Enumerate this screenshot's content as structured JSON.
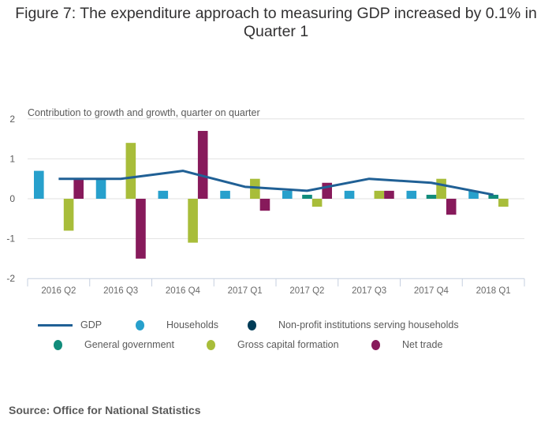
{
  "chart_data": {
    "type": "bar",
    "title": "Figure 7: The expenditure approach to measuring GDP increased by 0.1% in Quarter 1",
    "subtitle": "Contribution to growth and growth, quarter on quarter",
    "xlabel": "",
    "ylabel": "",
    "ylim": [
      -2,
      2
    ],
    "yticks": [
      2,
      1,
      0,
      -1,
      -2
    ],
    "grid": true,
    "legend_position": "bottom",
    "categories": [
      "2016 Q2",
      "2016 Q3",
      "2016 Q4",
      "2017 Q1",
      "2017 Q2",
      "2017 Q3",
      "2017 Q4",
      "2018 Q1"
    ],
    "series": [
      {
        "name": "GDP",
        "type": "line",
        "color": "#206095",
        "values": [
          0.5,
          0.5,
          0.7,
          0.3,
          0.2,
          0.5,
          0.4,
          0.1
        ]
      },
      {
        "name": "Households",
        "type": "bar",
        "color": "#27a0cc",
        "values": [
          0.7,
          0.5,
          0.2,
          0.2,
          0.2,
          0.2,
          0.2,
          0.2
        ]
      },
      {
        "name": "Non-profit institutions serving households",
        "type": "bar",
        "color": "#003c57",
        "values": [
          0,
          0,
          0,
          0,
          0,
          0,
          0,
          0
        ]
      },
      {
        "name": "General government",
        "type": "bar",
        "color": "#118c7b",
        "values": [
          0,
          0,
          0,
          0,
          0.1,
          0,
          0.1,
          0.1
        ]
      },
      {
        "name": "Gross capital formation",
        "type": "bar",
        "color": "#a8bd3a",
        "values": [
          -0.8,
          1.4,
          -1.1,
          0.5,
          -0.2,
          0.2,
          0.5,
          -0.2
        ]
      },
      {
        "name": "Net trade",
        "type": "bar",
        "color": "#871a5b",
        "values": [
          0.5,
          -1.5,
          1.7,
          -0.3,
          0.4,
          0.2,
          -0.4,
          0
        ]
      }
    ]
  },
  "legend": {
    "items": [
      {
        "label": "GDP",
        "shape": "line",
        "color": "#206095"
      },
      {
        "label": "Households",
        "shape": "dot",
        "color": "#27a0cc"
      },
      {
        "label": "Non-profit institutions serving households",
        "shape": "dot",
        "color": "#003c57"
      },
      {
        "label": "General government",
        "shape": "dot",
        "color": "#118c7b"
      },
      {
        "label": "Gross capital formation",
        "shape": "dot",
        "color": "#a8bd3a"
      },
      {
        "label": "Net trade",
        "shape": "dot",
        "color": "#871a5b"
      }
    ]
  },
  "source": "Source: Office for National Statistics"
}
